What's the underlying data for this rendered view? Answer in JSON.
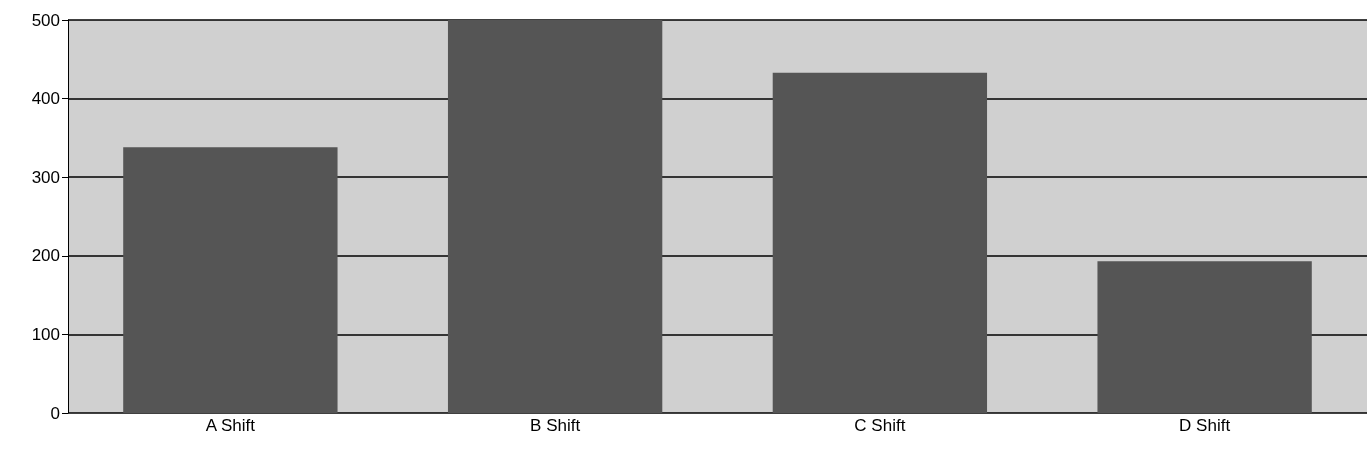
{
  "chart_data": {
    "type": "bar",
    "categories": [
      "A Shift",
      "B Shift",
      "C Shift",
      "D Shift"
    ],
    "values": [
      338,
      500,
      433,
      193
    ],
    "color": "#555555",
    "ylim": [
      0,
      500
    ],
    "yticks": [
      0,
      100,
      200,
      300,
      400,
      500
    ],
    "grid": true
  }
}
